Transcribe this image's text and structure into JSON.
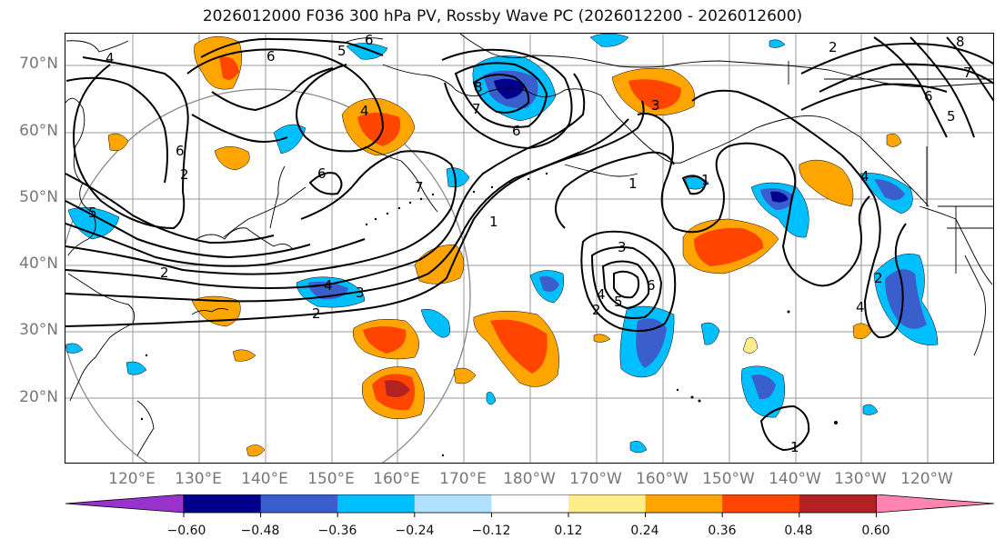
{
  "title": "2026012000 F036 300 hPa PV, Rossby Wave PC (2026012200 - 2026012600)",
  "lat_labels": [
    "70°N",
    "60°N",
    "50°N",
    "40°N",
    "30°N",
    "20°N"
  ],
  "lon_labels": [
    "120°E",
    "130°E",
    "140°E",
    "150°E",
    "160°E",
    "170°E",
    "180°W",
    "170°W",
    "160°W",
    "150°W",
    "140°W",
    "130°W",
    "120°W"
  ],
  "contour_labels": [
    "4",
    "6",
    "6",
    "5",
    "4",
    "6",
    "7",
    "6",
    "7",
    "8",
    "2",
    "2",
    "2",
    "1",
    "1",
    "6",
    "5",
    "4",
    "2",
    "3",
    "1",
    "4",
    "3",
    "6",
    "1",
    "3",
    "5",
    "2",
    "2",
    "4",
    "4",
    "8",
    "7",
    "6",
    "5"
  ],
  "colorbar": {
    "ticks": [
      "−0.60",
      "−0.48",
      "−0.36",
      "−0.24",
      "−0.12",
      "0.12",
      "0.24",
      "0.36",
      "0.48",
      "0.60"
    ],
    "colors": [
      "#9932CC",
      "#00008B",
      "#3A5FCD",
      "#00BFFF",
      "#B0E2FF",
      "#FFFFFF",
      "#FFEC8B",
      "#FFA500",
      "#FF4500",
      "#B22222",
      "#FF85B0"
    ]
  },
  "palette": {
    "frame": "#000000",
    "grid": "#9a9a9a",
    "contour": "#000000",
    "coast": "#000000",
    "axis_text": "#777777"
  }
}
